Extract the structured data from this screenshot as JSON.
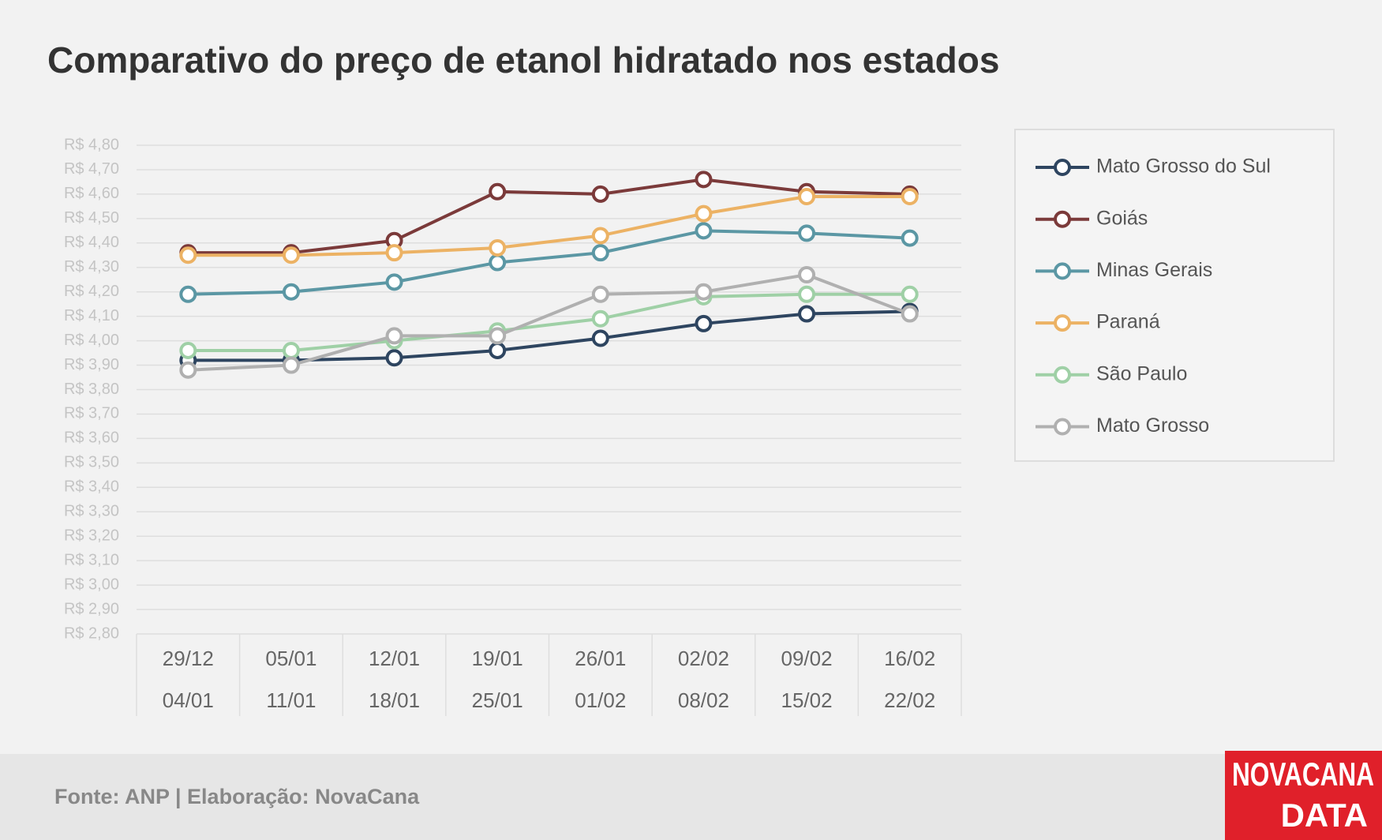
{
  "chart_data": {
    "type": "line",
    "title": "Comparativo do preço de etanol hidratado nos estados",
    "categories": [
      [
        "29/12",
        "04/01"
      ],
      [
        "05/01",
        "11/01"
      ],
      [
        "12/01",
        "18/01"
      ],
      [
        "19/01",
        "25/01"
      ],
      [
        "26/01",
        "01/02"
      ],
      [
        "02/02",
        "08/02"
      ],
      [
        "09/02",
        "15/02"
      ],
      [
        "16/02",
        "22/02"
      ]
    ],
    "series": [
      {
        "name": "Mato Grosso do Sul",
        "color": "#2e4560",
        "values": [
          3.92,
          3.92,
          3.93,
          3.96,
          4.01,
          4.07,
          4.11,
          4.12
        ]
      },
      {
        "name": "Goiás",
        "color": "#7b3a3a",
        "values": [
          4.36,
          4.36,
          4.41,
          4.61,
          4.6,
          4.66,
          4.61,
          4.6
        ]
      },
      {
        "name": "Minas Gerais",
        "color": "#5b97a4",
        "values": [
          4.19,
          4.2,
          4.24,
          4.32,
          4.36,
          4.45,
          4.44,
          4.42
        ]
      },
      {
        "name": "Paraná",
        "color": "#ecb264",
        "values": [
          4.35,
          4.35,
          4.36,
          4.38,
          4.43,
          4.52,
          4.59,
          4.59
        ]
      },
      {
        "name": "São Paulo",
        "color": "#9fd0a6",
        "values": [
          3.96,
          3.96,
          4.0,
          4.04,
          4.09,
          4.18,
          4.19,
          4.19
        ]
      },
      {
        "name": "Mato Grosso",
        "color": "#b0b0b0",
        "values": [
          3.88,
          3.9,
          4.02,
          4.02,
          4.19,
          4.2,
          4.27,
          4.11
        ]
      }
    ],
    "ylim": [
      2.8,
      4.8
    ],
    "yticks": [
      {
        "value": 2.8,
        "label": "R$ 2,80"
      },
      {
        "value": 2.9,
        "label": "R$ 2,90"
      },
      {
        "value": 3.0,
        "label": "R$ 3,00"
      },
      {
        "value": 3.1,
        "label": "R$ 3,10"
      },
      {
        "value": 3.2,
        "label": "R$ 3,20"
      },
      {
        "value": 3.3,
        "label": "R$ 3,30"
      },
      {
        "value": 3.4,
        "label": "R$ 3,40"
      },
      {
        "value": 3.5,
        "label": "R$ 3,50"
      },
      {
        "value": 3.6,
        "label": "R$ 3,60"
      },
      {
        "value": 3.7,
        "label": "R$ 3,70"
      },
      {
        "value": 3.8,
        "label": "R$ 3,80"
      },
      {
        "value": 3.9,
        "label": "R$ 3,90"
      },
      {
        "value": 4.0,
        "label": "R$ 4,00"
      },
      {
        "value": 4.1,
        "label": "R$ 4,10"
      },
      {
        "value": 4.2,
        "label": "R$ 4,20"
      },
      {
        "value": 4.3,
        "label": "R$ 4,30"
      },
      {
        "value": 4.4,
        "label": "R$ 4,40"
      },
      {
        "value": 4.5,
        "label": "R$ 4,50"
      },
      {
        "value": 4.6,
        "label": "R$ 4,60"
      },
      {
        "value": 4.7,
        "label": "R$ 4,70"
      },
      {
        "value": 4.8,
        "label": "R$ 4,80"
      }
    ],
    "grid": true,
    "legend": "right",
    "source": "Fonte: ANP | Elaboração: NovaCana"
  },
  "logo": [
    "NOVACANA",
    "DATA"
  ]
}
